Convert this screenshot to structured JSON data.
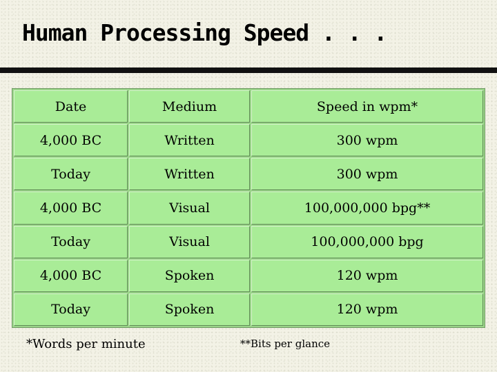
{
  "slide": {
    "title": "Human Processing Speed . . ."
  },
  "table": {
    "headers": [
      "Date",
      "Medium",
      "Speed in wpm*"
    ],
    "rows": [
      [
        "4,000 BC",
        "Written",
        "300 wpm"
      ],
      [
        "Today",
        "Written",
        "300 wpm"
      ],
      [
        "4,000 BC",
        "Visual",
        "100,000,000 bpg**"
      ],
      [
        "Today",
        "Visual",
        "100,000,000 bpg"
      ],
      [
        "4,000 BC",
        "Spoken",
        "120 wpm"
      ],
      [
        "Today",
        "Spoken",
        "120 wpm"
      ]
    ]
  },
  "footnotes": {
    "words": "*Words per minute",
    "bits": "**Bits per glance"
  },
  "colors": {
    "background": "#f3f2e6",
    "cell": "#a9ec97",
    "rule": "#111111"
  }
}
